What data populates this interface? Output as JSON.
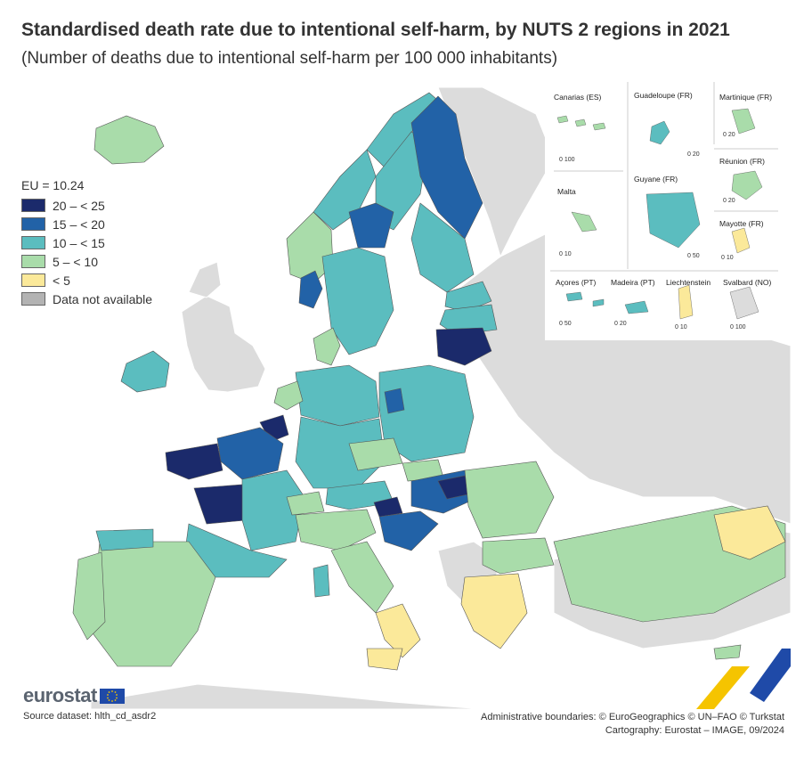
{
  "title": "Standardised death rate due to intentional self-harm, by NUTS 2 regions in 2021",
  "subtitle": "(Number of deaths due to intentional self-harm per 100 000 inhabitants)",
  "legend": {
    "eu_value": "EU = 10.24",
    "classes": [
      {
        "label": "20 – < 25",
        "color": "#1b2a6b"
      },
      {
        "label": "15 – < 20",
        "color": "#2262a7"
      },
      {
        "label": "10 – < 15",
        "color": "#5bbdbf"
      },
      {
        "label": "5 – < 10",
        "color": "#a9dcaa"
      },
      {
        "label": "< 5",
        "color": "#fbe99a"
      },
      {
        "label": "Data not available",
        "color": "#b3b3b3"
      }
    ]
  },
  "colors": {
    "non_eu_land": "#dcdcdc",
    "sea": "#ffffff",
    "border": "#555555"
  },
  "insets": {
    "canarias": {
      "name": "Canarias (ES)",
      "scale": "0    100"
    },
    "guadeloupe": {
      "name": "Guadeloupe (FR)",
      "scale": "0    20"
    },
    "martinique": {
      "name": "Martinique (FR)",
      "scale": "0    20"
    },
    "reunion": {
      "name": "Réunion (FR)",
      "scale": "0    20"
    },
    "malta": {
      "name": "Malta",
      "scale": "0    10"
    },
    "guyane": {
      "name": "Guyane (FR)",
      "scale": "0   50"
    },
    "mayotte": {
      "name": "Mayotte (FR)",
      "scale": "0   10"
    },
    "acores": {
      "name": "Açores (PT)",
      "scale": "0    50"
    },
    "madeira": {
      "name": "Madeira (PT)",
      "scale": "0   20"
    },
    "liechtenstein": {
      "name": "Liechtenstein",
      "scale": "0    10"
    },
    "svalbard": {
      "name": "Svalbard (NO)",
      "scale": "0    100"
    }
  },
  "footer": {
    "logo_text": "eurostat",
    "source": "Source dataset: hlth_cd_asdr2",
    "credits_line1": "Administrative boundaries: © EuroGeographics © UN–FAO © Turkstat",
    "credits_line2": "Cartography: Eurostat – IMAGE, 09/2024"
  }
}
